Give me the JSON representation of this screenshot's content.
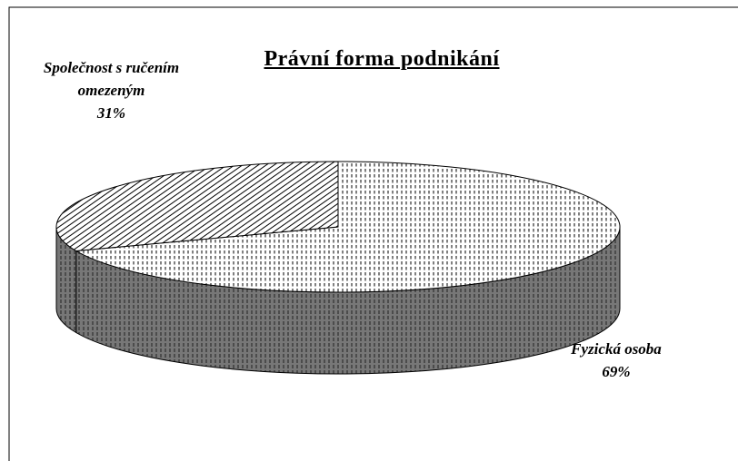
{
  "chart_data": {
    "type": "pie",
    "title": "Právní forma podnikání",
    "categories": [
      "Fyzická osoba",
      "Společnost s ručením omezeným"
    ],
    "values": [
      69,
      31
    ],
    "value_labels": [
      "69%",
      "31%"
    ],
    "three_d": true,
    "start_angle": "top",
    "direction": "clockwise"
  }
}
